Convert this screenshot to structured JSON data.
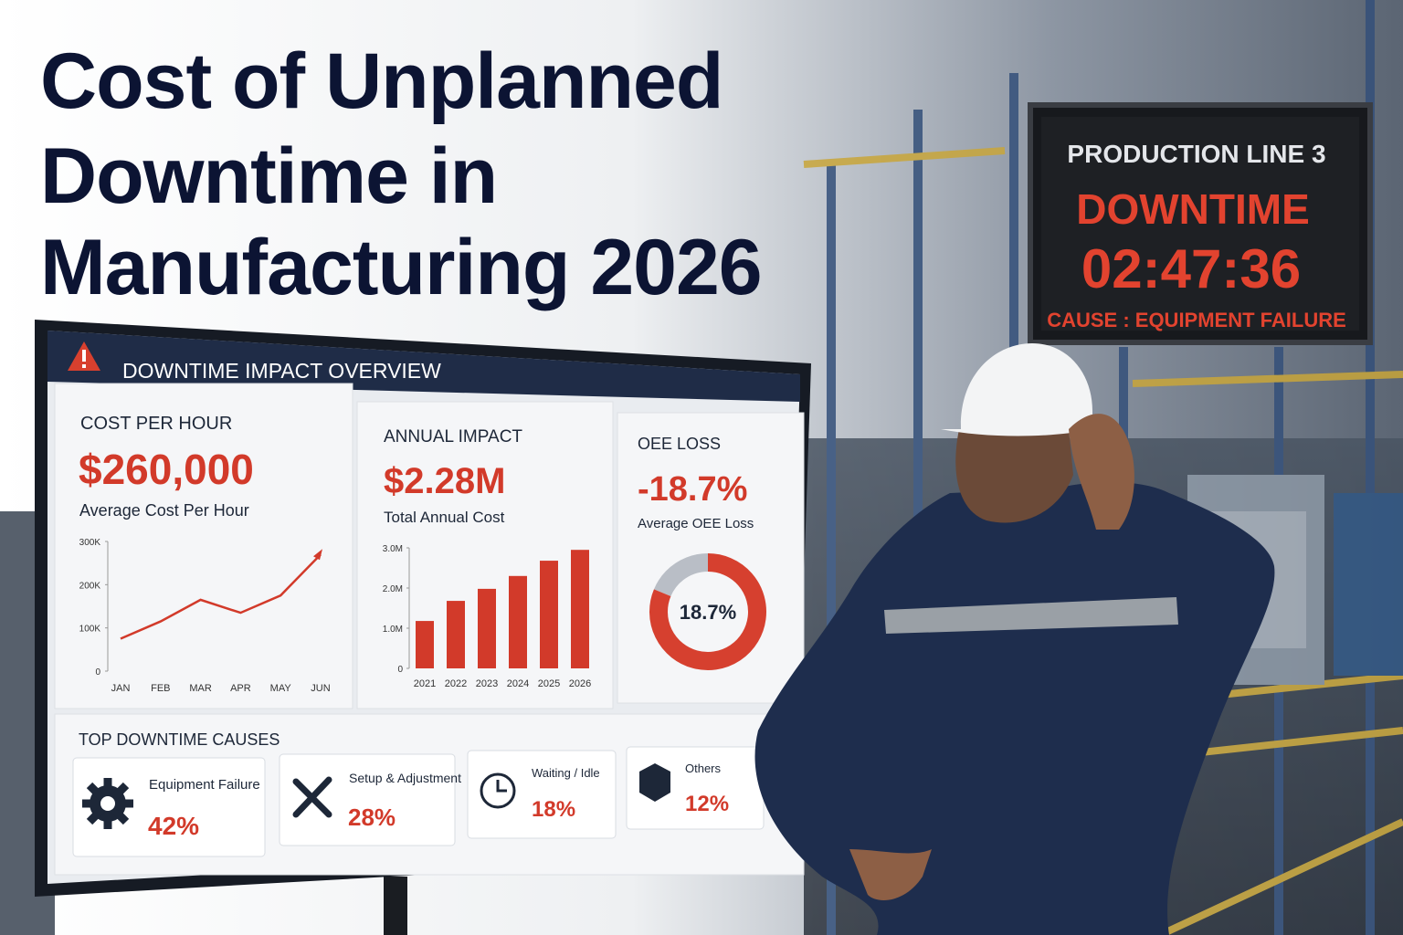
{
  "title": {
    "lines": [
      "Cost of Unplanned",
      "Downtime in",
      "Manufacturing 2026"
    ]
  },
  "status_board": {
    "line": "PRODUCTION LINE 3",
    "status": "DOWNTIME",
    "timer": "02:47:36",
    "cause": "CAUSE : EQUIPMENT FAILURE"
  },
  "dashboard": {
    "header": "DOWNTIME IMPACT OVERVIEW",
    "cost_per_hour": {
      "label": "COST PER HOUR",
      "value": "$260,000",
      "caption": "Average Cost Per Hour",
      "chart": {
        "type": "line",
        "categories": [
          "JAN",
          "FEB",
          "MAR",
          "APR",
          "MAY",
          "JUN"
        ],
        "values": [
          75000,
          115000,
          165000,
          135000,
          175000,
          270000
        ],
        "color": "#d23a2a",
        "ylim": [
          0,
          300000
        ],
        "yticks": [
          0,
          {
            "value": 100000,
            "label": "100K"
          },
          {
            "value": 200000,
            "label": "200K"
          },
          {
            "value": 300000,
            "label": "300K"
          }
        ]
      }
    },
    "annual_impact": {
      "label": "ANNUAL IMPACT",
      "value": "$2.28M",
      "caption": "Total Annual Cost",
      "chart": {
        "type": "bar",
        "categories": [
          "2021",
          "2022",
          "2023",
          "2024",
          "2025",
          "2026"
        ],
        "values": [
          1180000,
          1680000,
          1980000,
          2300000,
          2680000,
          2950000
        ],
        "color": "#d23a2a",
        "ylim": [
          0,
          3000000
        ],
        "yticks": [
          0,
          {
            "value": 1000000,
            "label": "1.0M"
          },
          {
            "value": 2000000,
            "label": "2.0M"
          },
          {
            "value": 3000000,
            "label": "3.0M"
          }
        ]
      }
    },
    "oee_loss": {
      "label": "OEE LOSS",
      "value": "-18.7%",
      "caption": "Average OEE Loss",
      "chart": {
        "type": "pie",
        "values": [
          18.7,
          81.3
        ],
        "colors": [
          "#b9bec6",
          "#d6402f"
        ],
        "value_labels": [
          "18.7%",
          null
        ]
      }
    },
    "causes": {
      "title": "TOP DOWNTIME CAUSES",
      "items": [
        {
          "label": "Equipment Failure",
          "value": "42%"
        },
        {
          "label": "Setup & Adjustment",
          "value": "28%"
        },
        {
          "label": "Waiting / Idle",
          "value": "18%"
        },
        {
          "label": "Others",
          "value": "12%"
        }
      ]
    }
  }
}
